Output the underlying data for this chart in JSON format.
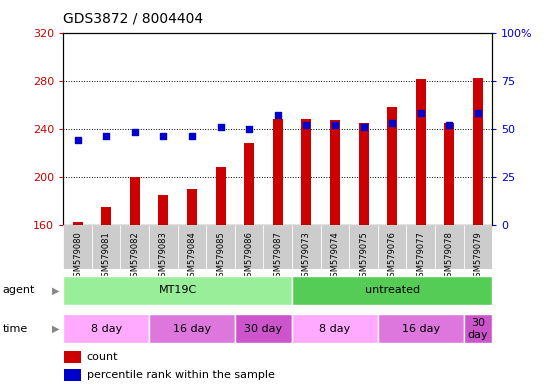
{
  "title": "GDS3872 / 8004404",
  "samples": [
    "GSM579080",
    "GSM579081",
    "GSM579082",
    "GSM579083",
    "GSM579084",
    "GSM579085",
    "GSM579086",
    "GSM579087",
    "GSM579073",
    "GSM579074",
    "GSM579075",
    "GSM579076",
    "GSM579077",
    "GSM579078",
    "GSM579079"
  ],
  "counts": [
    162,
    175,
    200,
    185,
    190,
    208,
    228,
    248,
    248,
    247,
    245,
    258,
    281,
    245,
    282
  ],
  "percentile_ranks": [
    44,
    46,
    48,
    46,
    46,
    51,
    50,
    57,
    52,
    52,
    51,
    53,
    58,
    52,
    58
  ],
  "count_color": "#cc0000",
  "percentile_color": "#0000cc",
  "ylim_left": [
    160,
    320
  ],
  "ylim_right": [
    0,
    100
  ],
  "yticks_left": [
    160,
    200,
    240,
    280,
    320
  ],
  "yticks_right": [
    0,
    25,
    50,
    75,
    100
  ],
  "ytick_right_labels": [
    "0",
    "25",
    "50",
    "75",
    "100%"
  ],
  "bar_width": 0.35,
  "agent_labels": [
    {
      "label": "MT19C",
      "start": 0,
      "end": 8,
      "color": "#99ee99"
    },
    {
      "label": "untreated",
      "start": 8,
      "end": 15,
      "color": "#55cc55"
    }
  ],
  "time_labels": [
    {
      "label": "8 day",
      "start": 0,
      "end": 3,
      "color": "#ffaaff"
    },
    {
      "label": "16 day",
      "start": 3,
      "end": 6,
      "color": "#dd77dd"
    },
    {
      "label": "30 day",
      "start": 6,
      "end": 8,
      "color": "#cc55cc"
    },
    {
      "label": "8 day",
      "start": 8,
      "end": 11,
      "color": "#ffaaff"
    },
    {
      "label": "16 day",
      "start": 11,
      "end": 14,
      "color": "#dd77dd"
    },
    {
      "label": "30\nday",
      "start": 14,
      "end": 15,
      "color": "#cc55cc"
    }
  ],
  "legend_count": "count",
  "legend_pct": "percentile rank within the sample",
  "ylabel_left_color": "#cc0000",
  "ylabel_right_color": "#0000cc",
  "bg_color": "#ffffff",
  "tick_label_bg": "#cccccc",
  "sample_label_fontsize": 6,
  "annotation_fontsize": 8
}
